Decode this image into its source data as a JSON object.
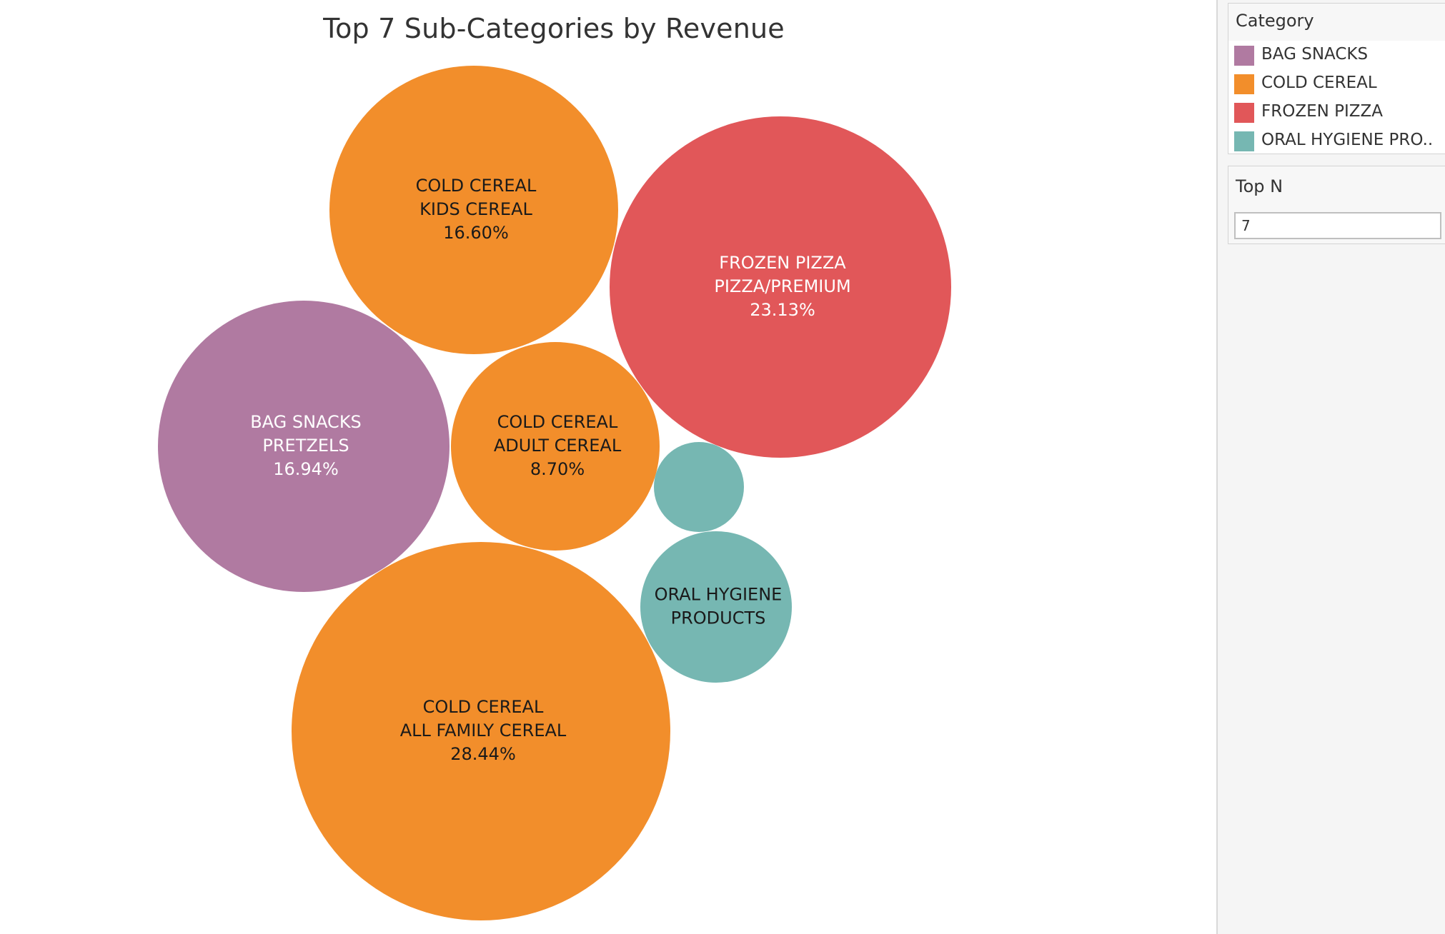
{
  "chart_data": {
    "type": "bubble",
    "title": "Top 7 Sub-Categories by Revenue",
    "bubbles": [
      {
        "category": "COLD CEREAL",
        "subcategory": "ALL FAMILY CEREAL",
        "share": 28.44,
        "label": "28.44%"
      },
      {
        "category": "FROZEN PIZZA",
        "subcategory": "PIZZA/PREMIUM",
        "share": 23.13,
        "label": "23.13%"
      },
      {
        "category": "BAG SNACKS",
        "subcategory": "PRETZELS",
        "share": 16.94,
        "label": "16.94%"
      },
      {
        "category": "COLD CEREAL",
        "subcategory": "KIDS CEREAL",
        "share": 16.6,
        "label": "16.60%"
      },
      {
        "category": "COLD CEREAL",
        "subcategory": "ADULT CEREAL",
        "share": 8.7,
        "label": "8.70%"
      },
      {
        "category": "ORAL HYGIENE PRODUCTS",
        "subcategory": "",
        "share": null,
        "label": ""
      },
      {
        "category": "ORAL HYGIENE PRODUCTS",
        "subcategory": "",
        "share": null,
        "label": ""
      }
    ],
    "legend": {
      "title": "Category",
      "placement": "right",
      "items": [
        {
          "label": "BAG SNACKS",
          "color": "#b07aa1"
        },
        {
          "label": "COLD CEREAL",
          "color": "#f28e2b"
        },
        {
          "label": "FROZEN PIZZA",
          "color": "#e15759"
        },
        {
          "label": "ORAL HYGIENE PRO..",
          "color": "#76b7b2"
        }
      ]
    }
  },
  "colors": {
    "BAG SNACKS": "#b07aa1",
    "COLD CEREAL": "#f28e2b",
    "FROZEN PIZZA": "#e15759",
    "ORAL HYGIENE PRODUCTS": "#76b7b2"
  },
  "label_text_colors": {
    "BAG SNACKS": "#ffffff",
    "COLD CEREAL": "#1a1a1a",
    "FROZEN PIZZA": "#ffffff",
    "ORAL HYGIENE PRODUCTS": "#1a1a1a"
  },
  "topn": {
    "title": "Top N",
    "value": "7"
  }
}
